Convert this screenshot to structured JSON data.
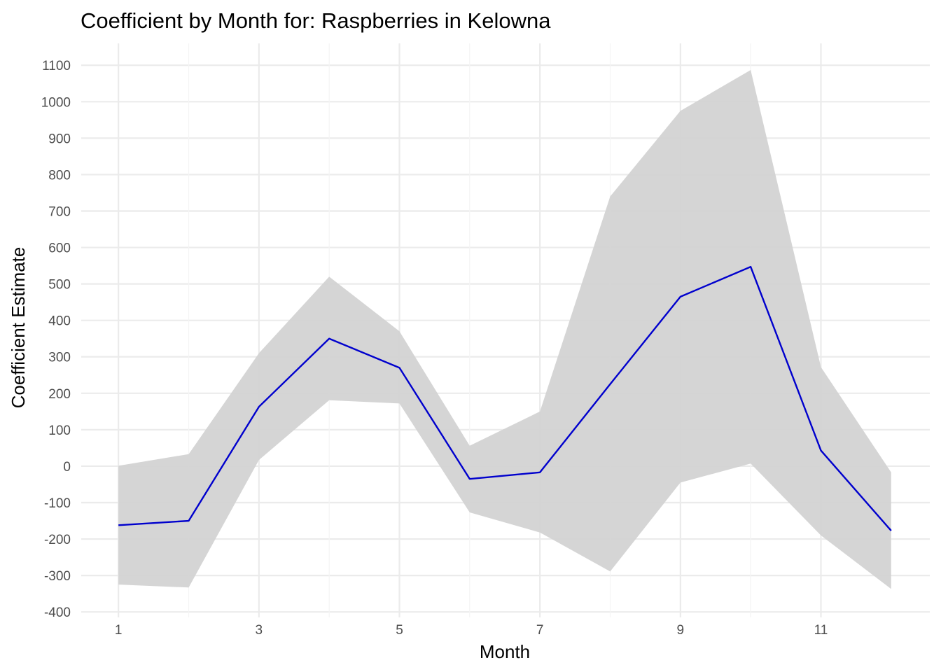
{
  "chart_data": {
    "type": "line",
    "title": "Coefficient by Month for: Raspberries in Kelowna",
    "xlabel": "Month",
    "ylabel": "Coefficient Estimate",
    "x_ticks": [
      "1",
      "3",
      "5",
      "7",
      "9",
      "11"
    ],
    "y_ticks": [
      "-400",
      "-300",
      "-200",
      "-100",
      "0",
      "100",
      "200",
      "300",
      "400",
      "500",
      "600",
      "700",
      "800",
      "900",
      "1000",
      "1100"
    ],
    "x_minor_grid": [
      2,
      4,
      6,
      8,
      10
    ],
    "xlim": [
      0.47,
      12.55
    ],
    "ylim": [
      -415,
      1160
    ],
    "grid": true,
    "legend": "none",
    "x": [
      1,
      2,
      3,
      4,
      5,
      6,
      7,
      8,
      9,
      10,
      11,
      12
    ],
    "series": [
      {
        "values": [
          -162,
          -150,
          163,
          350,
          270,
          -35,
          -17,
          225,
          465,
          547,
          43,
          -177
        ],
        "lower": [
          -325,
          -333,
          17,
          181,
          172,
          -127,
          -182,
          -289,
          -45,
          7,
          -190,
          -337
        ],
        "upper": [
          1,
          33,
          310,
          520,
          370,
          56,
          150,
          740,
          975,
          1087,
          272,
          -17
        ],
        "color": "#0000cd",
        "ribbon_color": "#d3d3d3"
      }
    ]
  }
}
